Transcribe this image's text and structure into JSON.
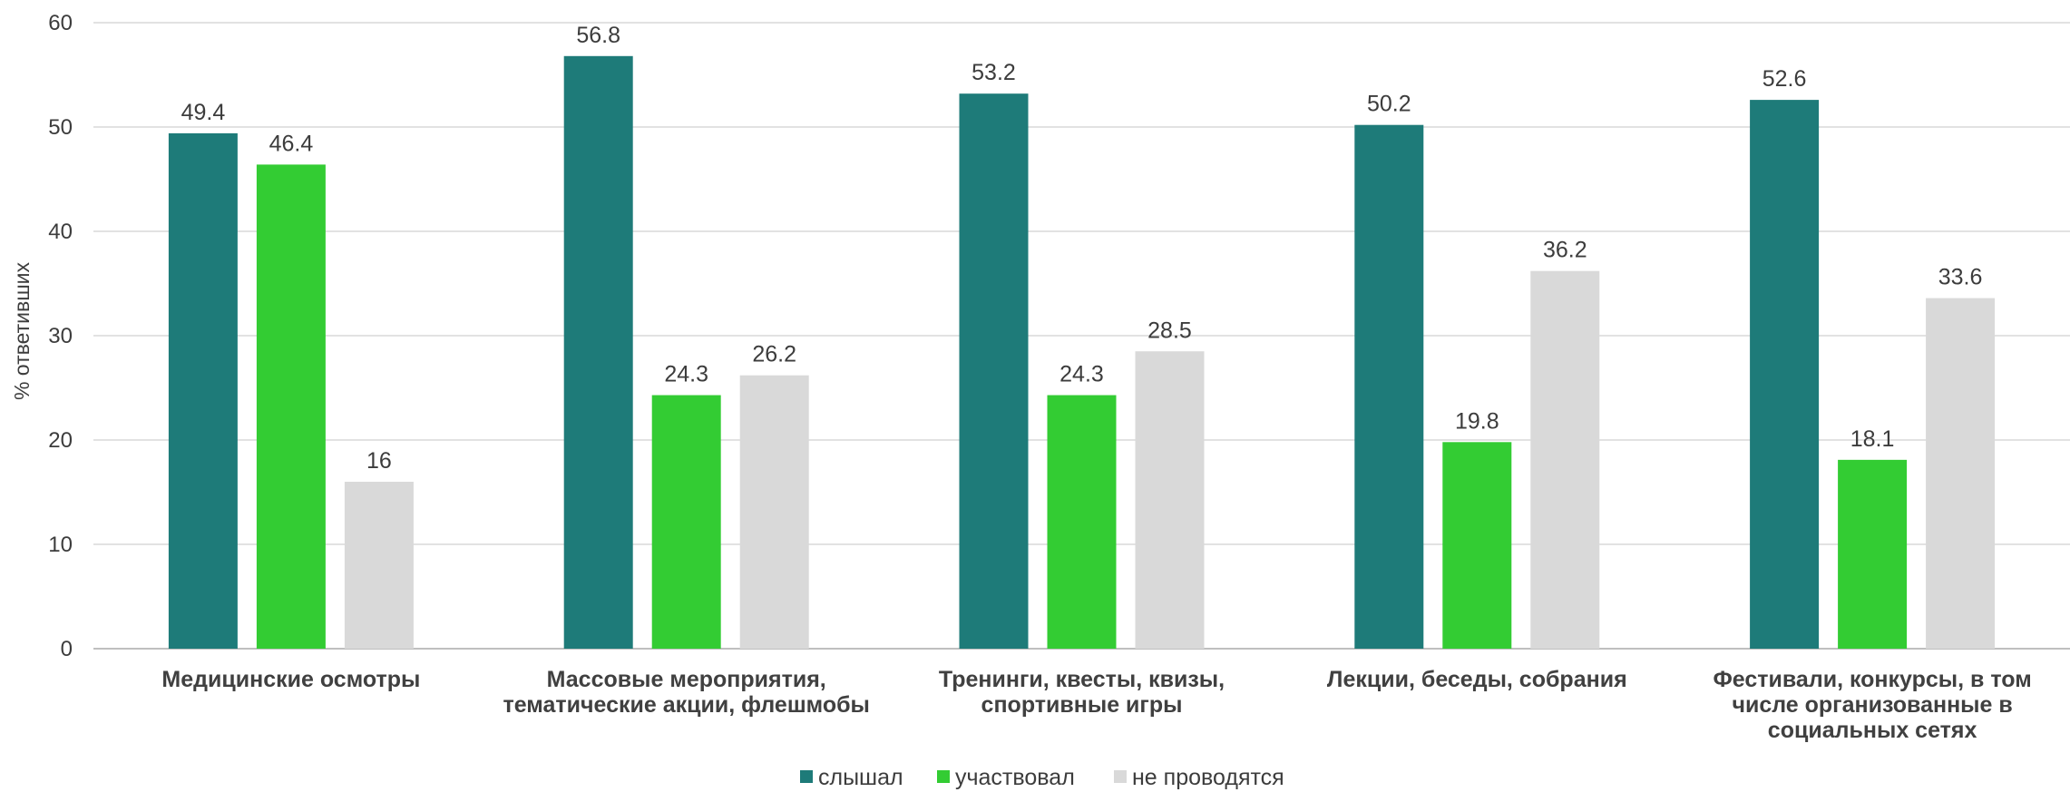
{
  "chart_data": {
    "type": "bar",
    "ylabel": "% ответивших",
    "ylim": [
      0,
      60
    ],
    "yticks": [
      0,
      10,
      20,
      30,
      40,
      50,
      60
    ],
    "grid": true,
    "legend_position": "bottom",
    "categories": [
      [
        "Медицинские осмотры"
      ],
      [
        "Массовые мероприятия,",
        "тематические акции, флешмобы"
      ],
      [
        "Тренинги, квесты, квизы,",
        "спортивные игры"
      ],
      [
        "Лекции, беседы, собрания"
      ],
      [
        "Фестивали, конкурсы, в том",
        "числе организованные в",
        "социальных сетях"
      ]
    ],
    "series": [
      {
        "name": "слышал",
        "color": "#1e7b79",
        "values": [
          49.4,
          56.8,
          53.2,
          50.2,
          52.6
        ],
        "labels": [
          "49.4",
          "56.8",
          "53.2",
          "50.2",
          "52.6"
        ]
      },
      {
        "name": "участвовал",
        "color": "#33cc33",
        "values": [
          46.4,
          24.3,
          24.3,
          19.8,
          18.1
        ],
        "labels": [
          "46.4",
          "24.3",
          "24.3",
          "19.8",
          "18.1"
        ]
      },
      {
        "name": "не проводятся",
        "color": "#d9d9d9",
        "values": [
          16,
          26.2,
          28.5,
          36.2,
          33.6
        ],
        "labels": [
          "16",
          "26.2",
          "28.5",
          "36.2",
          "33.6"
        ]
      }
    ]
  }
}
